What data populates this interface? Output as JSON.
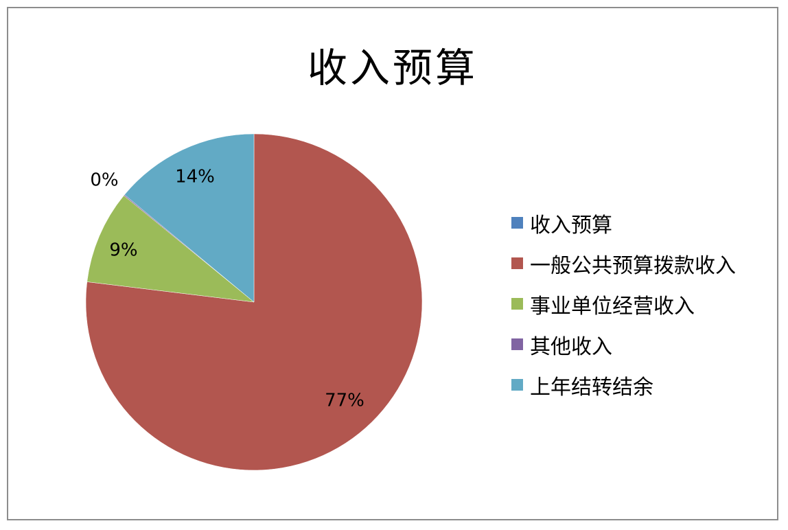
{
  "chart_data": {
    "type": "pie",
    "title": "收入预算",
    "legend_position": "right",
    "slices": [
      {
        "label": "收入预算",
        "value": 0,
        "percent_label": "",
        "color": "#4F81BD"
      },
      {
        "label": "一般公共预算拨款收入",
        "value": 77,
        "percent_label": "77%",
        "color": "#B2564F"
      },
      {
        "label": "事业单位经营收入",
        "value": 9,
        "percent_label": "9%",
        "color": "#9BBB59"
      },
      {
        "label": "其他收入",
        "value": 0.1,
        "percent_label": "0%",
        "color": "#8064A2"
      },
      {
        "label": "上年结转结余",
        "value": 14,
        "percent_label": "14%",
        "color": "#62AAC5"
      }
    ]
  }
}
